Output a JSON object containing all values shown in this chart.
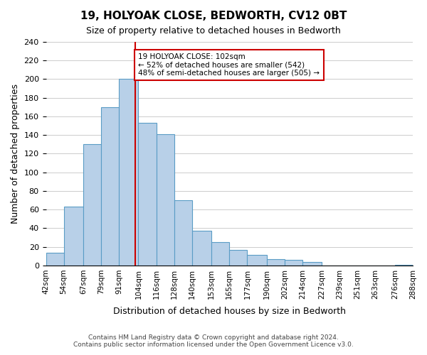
{
  "title": "19, HOLYOAK CLOSE, BEDWORTH, CV12 0BT",
  "subtitle": "Size of property relative to detached houses in Bedworth",
  "xlabel": "Distribution of detached houses by size in Bedworth",
  "ylabel": "Number of detached properties",
  "bin_labels": [
    "42sqm",
    "54sqm",
    "67sqm",
    "79sqm",
    "91sqm",
    "104sqm",
    "116sqm",
    "128sqm",
    "140sqm",
    "153sqm",
    "165sqm",
    "177sqm",
    "190sqm",
    "202sqm",
    "214sqm",
    "227sqm",
    "239sqm",
    "251sqm",
    "263sqm",
    "276sqm",
    "288sqm"
  ],
  "bin_edges": [
    42,
    54,
    67,
    79,
    91,
    104,
    116,
    128,
    140,
    153,
    165,
    177,
    190,
    202,
    214,
    227,
    239,
    251,
    263,
    276,
    288
  ],
  "bar_heights": [
    14,
    63,
    130,
    170,
    200,
    153,
    141,
    70,
    37,
    25,
    17,
    11,
    7,
    6,
    4,
    0,
    0,
    0,
    0,
    1
  ],
  "bar_color": "#b8d0e8",
  "bar_edge_color": "#5a9cc5",
  "property_size": 102,
  "property_line_color": "#cc0000",
  "annotation_text": "19 HOLYOAK CLOSE: 102sqm\n← 52% of detached houses are smaller (542)\n48% of semi-detached houses are larger (505) →",
  "annotation_box_edge": "#cc0000",
  "ylim": [
    0,
    240
  ],
  "yticks": [
    0,
    20,
    40,
    60,
    80,
    100,
    120,
    140,
    160,
    180,
    200,
    220,
    240
  ],
  "footer_line1": "Contains HM Land Registry data © Crown copyright and database right 2024.",
  "footer_line2": "Contains public sector information licensed under the Open Government Licence v3.0.",
  "background_color": "#ffffff",
  "grid_color": "#cccccc"
}
